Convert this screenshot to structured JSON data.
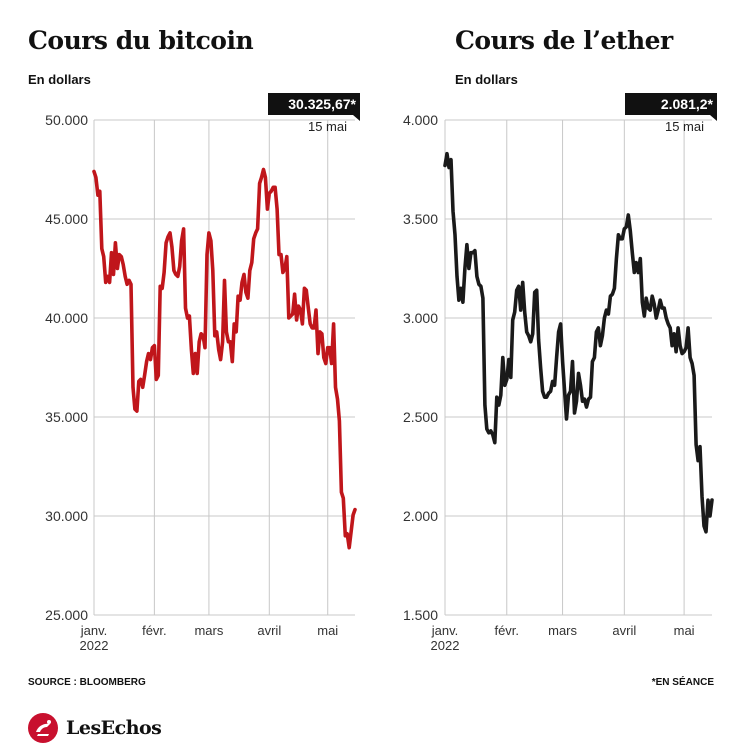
{
  "charts": [
    {
      "title": "Cours du bitcoin",
      "subtitle": "En dollars",
      "last_value_label": "30.325,67*",
      "last_date_label": "15 mai",
      "line_color": "#c0161b"
    },
    {
      "title": "Cours de l’ether",
      "subtitle": "En dollars",
      "last_value_label": "2.081,2*",
      "last_date_label": "15 mai",
      "line_color": "#1a1a1a"
    }
  ],
  "footer": {
    "source": "SOURCE : BLOOMBERG",
    "note": "*EN SÉANCE"
  },
  "logo": {
    "text": "LesEchos"
  },
  "chart_data": [
    {
      "type": "line",
      "title": "Cours du bitcoin",
      "ylabel": "En dollars",
      "ylim": [
        25000,
        50000
      ],
      "yticks": [
        25000,
        30000,
        35000,
        40000,
        45000,
        50000
      ],
      "ytick_labels": [
        "25.000",
        "30.000",
        "35.000",
        "40.000",
        "45.000",
        "50.000"
      ],
      "xticks": [
        "2022-01-01",
        "2022-02-01",
        "2022-03-01",
        "2022-04-01",
        "2022-05-01"
      ],
      "xtick_labels": [
        [
          "janv.",
          "2022"
        ],
        [
          "févr."
        ],
        [
          "mars"
        ],
        [
          "avril"
        ],
        [
          "mai"
        ]
      ],
      "xlim": [
        "2022-01-01",
        "2022-05-15"
      ],
      "grid": true,
      "series": [
        {
          "x": [
            "2022-01-01",
            "2022-01-02",
            "2022-01-03",
            "2022-01-04",
            "2022-01-05",
            "2022-01-06",
            "2022-01-07",
            "2022-01-08",
            "2022-01-09",
            "2022-01-10",
            "2022-01-11",
            "2022-01-12",
            "2022-01-13",
            "2022-01-14",
            "2022-01-15",
            "2022-01-16",
            "2022-01-17",
            "2022-01-18",
            "2022-01-19",
            "2022-01-20",
            "2022-01-21",
            "2022-01-22",
            "2022-01-23",
            "2022-01-24",
            "2022-01-25",
            "2022-01-26",
            "2022-01-27",
            "2022-01-28",
            "2022-01-29",
            "2022-01-30",
            "2022-01-31",
            "2022-02-01",
            "2022-02-02",
            "2022-02-03",
            "2022-02-04",
            "2022-02-05",
            "2022-02-06",
            "2022-02-07",
            "2022-02-08",
            "2022-02-09",
            "2022-02-10",
            "2022-02-11",
            "2022-02-12",
            "2022-02-13",
            "2022-02-14",
            "2022-02-15",
            "2022-02-16",
            "2022-02-17",
            "2022-02-18",
            "2022-02-19",
            "2022-02-20",
            "2022-02-21",
            "2022-02-22",
            "2022-02-23",
            "2022-02-24",
            "2022-02-25",
            "2022-02-26",
            "2022-02-27",
            "2022-02-28",
            "2022-03-01",
            "2022-03-02",
            "2022-03-03",
            "2022-03-04",
            "2022-03-05",
            "2022-03-06",
            "2022-03-07",
            "2022-03-08",
            "2022-03-09",
            "2022-03-10",
            "2022-03-11",
            "2022-03-12",
            "2022-03-13",
            "2022-03-14",
            "2022-03-15",
            "2022-03-16",
            "2022-03-17",
            "2022-03-18",
            "2022-03-19",
            "2022-03-20",
            "2022-03-21",
            "2022-03-22",
            "2022-03-23",
            "2022-03-24",
            "2022-03-25",
            "2022-03-26",
            "2022-03-27",
            "2022-03-28",
            "2022-03-29",
            "2022-03-30",
            "2022-03-31",
            "2022-04-01",
            "2022-04-02",
            "2022-04-03",
            "2022-04-04",
            "2022-04-05",
            "2022-04-06",
            "2022-04-07",
            "2022-04-08",
            "2022-04-09",
            "2022-04-10",
            "2022-04-11",
            "2022-04-12",
            "2022-04-13",
            "2022-04-14",
            "2022-04-15",
            "2022-04-16",
            "2022-04-17",
            "2022-04-18",
            "2022-04-19",
            "2022-04-20",
            "2022-04-21",
            "2022-04-22",
            "2022-04-23",
            "2022-04-24",
            "2022-04-25",
            "2022-04-26",
            "2022-04-27",
            "2022-04-28",
            "2022-04-29",
            "2022-04-30",
            "2022-05-01",
            "2022-05-02",
            "2022-05-03",
            "2022-05-04",
            "2022-05-05",
            "2022-05-06",
            "2022-05-07",
            "2022-05-08",
            "2022-05-09",
            "2022-05-10",
            "2022-05-11",
            "2022-05-12",
            "2022-05-13",
            "2022-05-14",
            "2022-05-15"
          ],
          "y": [
            47400,
            47100,
            46200,
            46400,
            43500,
            43100,
            41800,
            42100,
            41800,
            43300,
            42200,
            43800,
            42500,
            43200,
            43100,
            42700,
            42100,
            41700,
            41900,
            41700,
            36500,
            35400,
            35300,
            36800,
            36900,
            36500,
            37100,
            37800,
            38200,
            37900,
            38500,
            38600,
            36900,
            37100,
            41600,
            41500,
            42300,
            43800,
            44100,
            44300,
            43600,
            42400,
            42200,
            42100,
            42600,
            43900,
            44500,
            40500,
            40000,
            40100,
            38400,
            37200,
            38200,
            37200,
            38800,
            39200,
            39100,
            38500,
            43200,
            44300,
            43900,
            42400,
            39100,
            39300,
            38400,
            37900,
            38800,
            41900,
            39300,
            38800,
            38800,
            37800,
            39700,
            39300,
            41100,
            40900,
            41800,
            42200,
            41300,
            41000,
            42400,
            42800,
            44000,
            44300,
            44500,
            46800,
            47100,
            47500,
            47100,
            45500,
            46300,
            46400,
            46600,
            46600,
            45500,
            43200,
            43200,
            42300,
            42500,
            43100,
            40000,
            40100,
            40200,
            41200,
            39900,
            40600,
            40400,
            39700,
            41500,
            41400,
            40500,
            39700,
            39500,
            39500,
            40400,
            38200,
            39300,
            39200,
            38000,
            37700,
            38500,
            38500,
            37700,
            39700,
            36500,
            35900,
            34800,
            31200,
            30900,
            29000,
            29100,
            28400,
            29200,
            30050,
            30325
          ]
        }
      ]
    },
    {
      "type": "line",
      "title": "Cours de l’ether",
      "ylabel": "En dollars",
      "ylim": [
        1500,
        4000
      ],
      "yticks": [
        1500,
        2000,
        2500,
        3000,
        3500,
        4000
      ],
      "ytick_labels": [
        "1.500",
        "2.000",
        "2.500",
        "3.000",
        "3.500",
        "4.000"
      ],
      "xticks": [
        "2022-01-01",
        "2022-02-01",
        "2022-03-01",
        "2022-04-01",
        "2022-05-01"
      ],
      "xtick_labels": [
        [
          "janv.",
          "2022"
        ],
        [
          "févr."
        ],
        [
          "mars"
        ],
        [
          "avril"
        ],
        [
          "mai"
        ]
      ],
      "xlim": [
        "2022-01-01",
        "2022-05-15"
      ],
      "grid": true,
      "series": [
        {
          "x": [
            "2022-01-01",
            "2022-01-02",
            "2022-01-03",
            "2022-01-04",
            "2022-01-05",
            "2022-01-06",
            "2022-01-07",
            "2022-01-08",
            "2022-01-09",
            "2022-01-10",
            "2022-01-11",
            "2022-01-12",
            "2022-01-13",
            "2022-01-14",
            "2022-01-15",
            "2022-01-16",
            "2022-01-17",
            "2022-01-18",
            "2022-01-19",
            "2022-01-20",
            "2022-01-21",
            "2022-01-22",
            "2022-01-23",
            "2022-01-24",
            "2022-01-25",
            "2022-01-26",
            "2022-01-27",
            "2022-01-28",
            "2022-01-29",
            "2022-01-30",
            "2022-01-31",
            "2022-02-01",
            "2022-02-02",
            "2022-02-03",
            "2022-02-04",
            "2022-02-05",
            "2022-02-06",
            "2022-02-07",
            "2022-02-08",
            "2022-02-09",
            "2022-02-10",
            "2022-02-11",
            "2022-02-12",
            "2022-02-13",
            "2022-02-14",
            "2022-02-15",
            "2022-02-16",
            "2022-02-17",
            "2022-02-18",
            "2022-02-19",
            "2022-02-20",
            "2022-02-21",
            "2022-02-22",
            "2022-02-23",
            "2022-02-24",
            "2022-02-25",
            "2022-02-26",
            "2022-02-27",
            "2022-02-28",
            "2022-03-01",
            "2022-03-02",
            "2022-03-03",
            "2022-03-04",
            "2022-03-05",
            "2022-03-06",
            "2022-03-07",
            "2022-03-08",
            "2022-03-09",
            "2022-03-10",
            "2022-03-11",
            "2022-03-12",
            "2022-03-13",
            "2022-03-14",
            "2022-03-15",
            "2022-03-16",
            "2022-03-17",
            "2022-03-18",
            "2022-03-19",
            "2022-03-20",
            "2022-03-21",
            "2022-03-22",
            "2022-03-23",
            "2022-03-24",
            "2022-03-25",
            "2022-03-26",
            "2022-03-27",
            "2022-03-28",
            "2022-03-29",
            "2022-03-30",
            "2022-03-31",
            "2022-04-01",
            "2022-04-02",
            "2022-04-03",
            "2022-04-04",
            "2022-04-05",
            "2022-04-06",
            "2022-04-07",
            "2022-04-08",
            "2022-04-09",
            "2022-04-10",
            "2022-04-11",
            "2022-04-12",
            "2022-04-13",
            "2022-04-14",
            "2022-04-15",
            "2022-04-16",
            "2022-04-17",
            "2022-04-18",
            "2022-04-19",
            "2022-04-20",
            "2022-04-21",
            "2022-04-22",
            "2022-04-23",
            "2022-04-24",
            "2022-04-25",
            "2022-04-26",
            "2022-04-27",
            "2022-04-28",
            "2022-04-29",
            "2022-04-30",
            "2022-05-01",
            "2022-05-02",
            "2022-05-03",
            "2022-05-04",
            "2022-05-05",
            "2022-05-06",
            "2022-05-07",
            "2022-05-08",
            "2022-05-09",
            "2022-05-10",
            "2022-05-11",
            "2022-05-12",
            "2022-05-13",
            "2022-05-14",
            "2022-05-15"
          ],
          "y": [
            3770,
            3830,
            3760,
            3800,
            3540,
            3420,
            3210,
            3090,
            3150,
            3080,
            3250,
            3370,
            3250,
            3330,
            3330,
            3340,
            3210,
            3170,
            3160,
            3100,
            2560,
            2440,
            2420,
            2430,
            2410,
            2370,
            2600,
            2560,
            2610,
            2800,
            2660,
            2690,
            2790,
            2700,
            2990,
            3030,
            3140,
            3160,
            3040,
            3180,
            3030,
            2930,
            2910,
            2880,
            2920,
            3130,
            3140,
            2890,
            2750,
            2630,
            2600,
            2600,
            2620,
            2630,
            2680,
            2660,
            2800,
            2930,
            2970,
            2780,
            2630,
            2490,
            2610,
            2630,
            2780,
            2520,
            2580,
            2720,
            2660,
            2580,
            2590,
            2550,
            2590,
            2600,
            2780,
            2800,
            2930,
            2950,
            2860,
            2910,
            3000,
            3040,
            3020,
            3110,
            3120,
            3150,
            3300,
            3420,
            3400,
            3400,
            3450,
            3460,
            3520,
            3440,
            3330,
            3230,
            3280,
            3230,
            3300,
            3080,
            3010,
            3100,
            3050,
            3040,
            3110,
            3070,
            3000,
            3040,
            3090,
            3050,
            3050,
            3000,
            2970,
            2950,
            2860,
            2920,
            2830,
            2950,
            2860,
            2820,
            2830,
            2850,
            2950,
            2800,
            2770,
            2710,
            2360,
            2280,
            2350,
            2100,
            1950,
            1920,
            2080,
            2000,
            2081
          ]
        }
      ]
    }
  ]
}
